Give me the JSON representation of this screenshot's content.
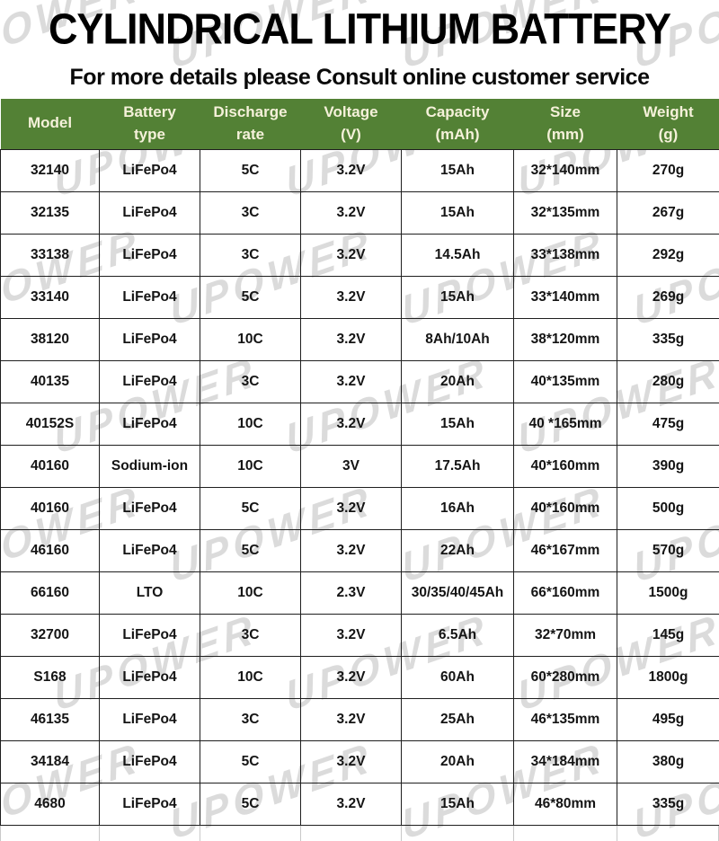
{
  "colors": {
    "header_bg": "#538135",
    "header_text": "#f5f1da",
    "border": "#1f1f1f",
    "cell_text": "#141414",
    "watermark": "#b9b9b9",
    "page_bg": "#ffffff"
  },
  "header": {
    "title": "CYLINDRICAL LITHIUM BATTERY",
    "subtitle": "For more details please Consult online customer service"
  },
  "watermark": {
    "text": "UPOWER"
  },
  "table": {
    "columns": [
      {
        "label": "Model"
      },
      {
        "label": "Battery\ntype"
      },
      {
        "label": "Discharge\nrate"
      },
      {
        "label": "Voltage\n(V)"
      },
      {
        "label": "Capacity\n(mAh)"
      },
      {
        "label": "Size\n(mm)"
      },
      {
        "label": "Weight\n(g)"
      }
    ],
    "rows": [
      [
        "32140",
        "LiFePo4",
        "5C",
        "3.2V",
        "15Ah",
        "32*140mm",
        "270g"
      ],
      [
        "32135",
        "LiFePo4",
        "3C",
        "3.2V",
        "15Ah",
        "32*135mm",
        "267g"
      ],
      [
        "33138",
        "LiFePo4",
        "3C",
        "3.2V",
        "14.5Ah",
        "33*138mm",
        "292g"
      ],
      [
        "33140",
        "LiFePo4",
        "5C",
        "3.2V",
        "15Ah",
        "33*140mm",
        "269g"
      ],
      [
        "38120",
        "LiFePo4",
        "10C",
        "3.2V",
        "8Ah/10Ah",
        "38*120mm",
        "335g"
      ],
      [
        "40135",
        "LiFePo4",
        "3C",
        "3.2V",
        "20Ah",
        "40*135mm",
        "280g"
      ],
      [
        "40152S",
        "LiFePo4",
        "10C",
        "3.2V",
        "15Ah",
        "40 *165mm",
        "475g"
      ],
      [
        "40160",
        "Sodium-ion",
        "10C",
        "3V",
        "17.5Ah",
        "40*160mm",
        "390g"
      ],
      [
        "40160",
        "LiFePo4",
        "5C",
        "3.2V",
        "16Ah",
        "40*160mm",
        "500g"
      ],
      [
        "46160",
        "LiFePo4",
        "5C",
        "3.2V",
        "22Ah",
        "46*167mm",
        "570g"
      ],
      [
        "66160",
        "LTO",
        "10C",
        "2.3V",
        "30/35/40/45Ah",
        "66*160mm",
        "1500g"
      ],
      [
        "32700",
        "LiFePo4",
        "3C",
        "3.2V",
        "6.5Ah",
        "32*70mm",
        "145g"
      ],
      [
        "S168",
        "LiFePo4",
        "10C",
        "3.2V",
        "60Ah",
        "60*280mm",
        "1800g"
      ],
      [
        "46135",
        "LiFePo4",
        "3C",
        "3.2V",
        "25Ah",
        "46*135mm",
        "495g"
      ],
      [
        "34184",
        "LiFePo4",
        "5C",
        "3.2V",
        "20Ah",
        "34*184mm",
        "380g"
      ],
      [
        "4680",
        "LiFePo4",
        "5C",
        "3.2V",
        "15Ah",
        "46*80mm",
        "335g"
      ]
    ]
  }
}
